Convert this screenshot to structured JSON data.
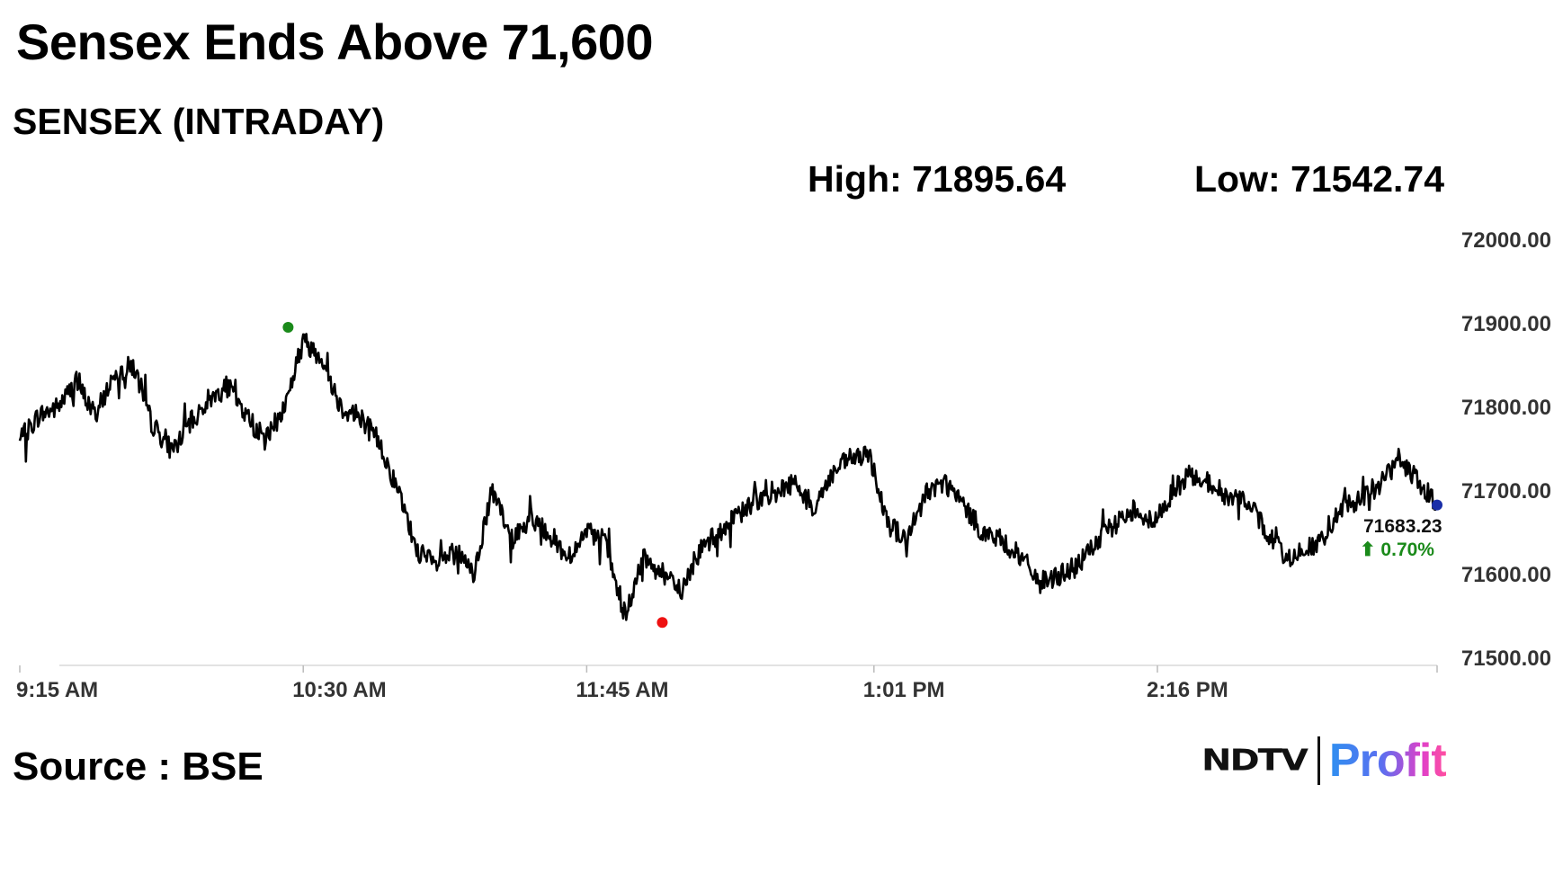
{
  "header": {
    "title": "Sensex Ends Above 71,600",
    "subtitle": "SENSEX (INTRADAY)",
    "high_text": "High: 71895.64",
    "low_text": "Low: 71542.74"
  },
  "footer": {
    "source": "Source : BSE",
    "logo_brand": "NDTV",
    "logo_product": "Profit"
  },
  "chart_data": {
    "type": "line",
    "title": "SENSEX (INTRADAY)",
    "xlabel": "",
    "ylabel": "",
    "x_ticks": [
      "9:15 AM",
      "10:30 AM",
      "11:45 AM",
      "1:01 PM",
      "2:16 PM"
    ],
    "y_ticks": [
      "72000.00",
      "71900.00",
      "71800.00",
      "71700.00",
      "71600.00",
      "71500.00"
    ],
    "ylim": [
      71500,
      72000
    ],
    "grid": false,
    "colors": {
      "line": "#000000",
      "high_marker": "#1a8a1a",
      "low_marker": "#ee1111",
      "last_marker": "#1a2ea8",
      "change": "#1a8a1a"
    },
    "last_value": "71683.23",
    "change_text": "⬆ 0.70%",
    "high": {
      "time": "10:26 AM",
      "value": 71895.64
    },
    "low": {
      "time": "12:05 PM",
      "value": 71542.74
    },
    "series": [
      {
        "x": [
          "9:15",
          "9:20",
          "9:25",
          "9:30",
          "9:35",
          "9:40",
          "9:45",
          "9:50",
          "9:55",
          "10:00",
          "10:05",
          "10:10",
          "10:15",
          "10:20",
          "10:25",
          "10:30",
          "10:35",
          "10:40",
          "10:45",
          "10:50",
          "10:55",
          "11:00",
          "11:05",
          "11:10",
          "11:15",
          "11:20",
          "11:25",
          "11:30",
          "11:35",
          "11:40",
          "11:45",
          "11:50",
          "11:55",
          "12:00",
          "12:05",
          "12:10",
          "12:15",
          "12:20",
          "12:25",
          "12:30",
          "12:35",
          "12:40",
          "12:45",
          "12:50",
          "12:55",
          "13:00",
          "13:05",
          "13:10",
          "13:15",
          "13:20",
          "13:25",
          "13:30",
          "13:35",
          "13:40",
          "13:45",
          "13:50",
          "13:55",
          "14:00",
          "14:05",
          "14:10",
          "14:15",
          "14:20",
          "14:25",
          "14:30",
          "14:35",
          "14:40",
          "14:45",
          "14:50",
          "14:55",
          "15:00",
          "15:05",
          "15:10",
          "15:15",
          "15:20",
          "15:25",
          "15:30"
        ],
        "values": [
          71760,
          71790,
          71800,
          71830,
          71790,
          71840,
          71850,
          71780,
          71750,
          71780,
          71810,
          71825,
          71790,
          71760,
          71800,
          71880,
          71860,
          71800,
          71790,
          71760,
          71700,
          71630,
          71610,
          71630,
          71600,
          71700,
          71640,
          71670,
          71650,
          71620,
          71650,
          71640,
          71545,
          71620,
          71600,
          71580,
          71630,
          71650,
          71670,
          71690,
          71700,
          71710,
          71680,
          71720,
          71740,
          71740,
          71660,
          71640,
          71700,
          71710,
          71680,
          71650,
          71640,
          71620,
          71590,
          71600,
          71610,
          71640,
          71660,
          71680,
          71660,
          71700,
          71720,
          71710,
          71690,
          71690,
          71650,
          71620,
          71630,
          71640,
          71680,
          71690,
          71710,
          71740,
          71710,
          71683.23
        ]
      }
    ]
  }
}
